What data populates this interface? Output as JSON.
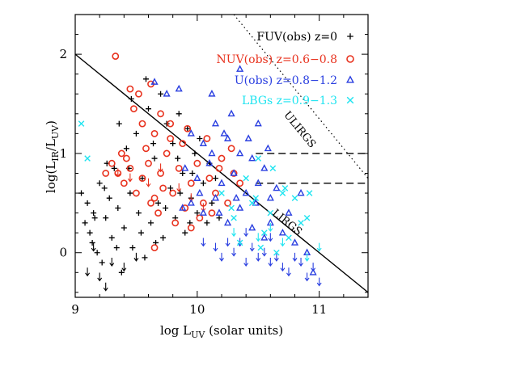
{
  "chart_data": {
    "type": "scatter",
    "xlabel": "log L",
    "xlabel_sub": "UV",
    "xlabel_suffix": " (solar units)",
    "ylabel": "log(L",
    "ylabel_sub1": "IR",
    "ylabel_mid": "/L",
    "ylabel_sub2": "UV",
    "ylabel_suffix": ")",
    "xlim": [
      9.0,
      11.4
    ],
    "ylim": [
      -0.45,
      2.4
    ],
    "xticks": [
      {
        "value": 9,
        "label": "9"
      },
      {
        "value": 10,
        "label": "10"
      },
      {
        "value": 11,
        "label": "11"
      }
    ],
    "yticks": [
      {
        "value": 0,
        "label": "0"
      },
      {
        "value": 1,
        "label": "1"
      },
      {
        "value": 2,
        "label": "2"
      }
    ],
    "grid": false,
    "legend_position": "top-right",
    "reference_lines": [
      {
        "label": "LIRGS",
        "style": "solid",
        "x": [
          9.0,
          11.4
        ],
        "y": [
          2.0,
          -0.4
        ],
        "label_x": 10.72,
        "label_y": 0.28
      },
      {
        "label": "ULIRGS",
        "style": "dotted",
        "x": [
          10.3,
          11.4
        ],
        "y": [
          2.4,
          0.75
        ],
        "label_x": 10.82,
        "label_y": 1.22
      },
      {
        "label": "",
        "style": "dashed",
        "x": [
          10.48,
          11.4
        ],
        "y": [
          1.0,
          1.0
        ]
      },
      {
        "label": "",
        "style": "dashed",
        "x": [
          10.48,
          11.4
        ],
        "y": [
          0.7,
          0.7
        ]
      }
    ],
    "series": [
      {
        "name": "FUV(obs)  z=0",
        "marker": "plus",
        "color": "#000000",
        "points": [
          [
            9.05,
            0.6
          ],
          [
            9.08,
            0.3
          ],
          [
            9.1,
            0.5
          ],
          [
            9.12,
            0.2
          ],
          [
            9.15,
            0.4
          ],
          [
            9.18,
            0.0
          ],
          [
            9.2,
            0.7
          ],
          [
            9.22,
            -0.1
          ],
          [
            9.25,
            0.35
          ],
          [
            9.28,
            0.55
          ],
          [
            9.3,
            0.15
          ],
          [
            9.32,
            0.85
          ],
          [
            9.35,
            0.45
          ],
          [
            9.38,
            -0.2
          ],
          [
            9.4,
            0.25
          ],
          [
            9.42,
            1.05
          ],
          [
            9.45,
            0.6
          ],
          [
            9.47,
            0.05
          ],
          [
            9.5,
            1.2
          ],
          [
            9.52,
            0.4
          ],
          [
            9.55,
            0.75
          ],
          [
            9.57,
            -0.05
          ],
          [
            9.6,
            1.45
          ],
          [
            9.62,
            0.3
          ],
          [
            9.65,
            0.95
          ],
          [
            9.68,
            0.5
          ],
          [
            9.7,
            1.6
          ],
          [
            9.72,
            0.15
          ],
          [
            9.75,
            1.3
          ],
          [
            9.78,
            0.65
          ],
          [
            9.8,
            1.1
          ],
          [
            9.82,
            0.35
          ],
          [
            9.85,
            1.4
          ],
          [
            9.88,
            0.8
          ],
          [
            9.9,
            0.2
          ],
          [
            9.92,
            1.25
          ],
          [
            9.95,
            0.55
          ],
          [
            9.98,
            1.0
          ],
          [
            10.0,
            0.4
          ],
          [
            10.02,
            1.15
          ],
          [
            10.05,
            0.7
          ],
          [
            10.08,
            0.3
          ],
          [
            10.1,
            0.9
          ],
          [
            10.12,
            0.5
          ],
          [
            10.15,
            0.75
          ],
          [
            10.18,
            0.35
          ],
          [
            9.14,
            0.1
          ],
          [
            9.24,
            0.65
          ],
          [
            9.34,
            0.05
          ],
          [
            9.44,
            0.85
          ],
          [
            9.54,
            0.2
          ],
          [
            9.64,
            1.1
          ],
          [
            9.74,
            0.45
          ],
          [
            9.84,
            0.95
          ],
          [
            9.94,
            0.3
          ],
          [
            9.46,
            1.55
          ],
          [
            9.58,
            1.75
          ],
          [
            9.36,
            1.3
          ],
          [
            9.26,
            0.9
          ],
          [
            9.66,
            0.1
          ],
          [
            9.86,
            0.6
          ],
          [
            9.96,
            0.8
          ],
          [
            9.16,
            0.35
          ]
        ]
      },
      {
        "name": "NUV(obs)  z=0.6−0.8",
        "marker": "circle",
        "color": "#e8321e",
        "points": [
          [
            9.33,
            1.98
          ],
          [
            9.45,
            1.65
          ],
          [
            9.52,
            1.6
          ],
          [
            9.62,
            1.7
          ],
          [
            9.55,
            1.3
          ],
          [
            9.65,
            1.2
          ],
          [
            9.7,
            1.4
          ],
          [
            9.3,
            0.9
          ],
          [
            9.35,
            0.8
          ],
          [
            9.4,
            0.7
          ],
          [
            9.45,
            0.85
          ],
          [
            9.5,
            0.6
          ],
          [
            9.55,
            0.75
          ],
          [
            9.6,
            0.9
          ],
          [
            9.65,
            0.55
          ],
          [
            9.7,
            0.8
          ],
          [
            9.75,
            1.0
          ],
          [
            9.8,
            0.6
          ],
          [
            9.85,
            0.85
          ],
          [
            9.9,
            0.45
          ],
          [
            9.95,
            0.7
          ],
          [
            10.0,
            0.9
          ],
          [
            10.05,
            0.5
          ],
          [
            10.1,
            0.75
          ],
          [
            10.15,
            0.6
          ],
          [
            10.2,
            0.95
          ],
          [
            10.25,
            0.5
          ],
          [
            10.3,
            0.8
          ],
          [
            9.42,
            0.95
          ],
          [
            9.58,
            1.05
          ],
          [
            9.72,
            0.65
          ],
          [
            9.88,
            1.1
          ],
          [
            10.02,
            0.35
          ],
          [
            10.18,
            0.85
          ],
          [
            9.92,
            1.25
          ],
          [
            9.78,
            1.3
          ],
          [
            9.48,
            1.45
          ],
          [
            10.08,
            1.15
          ],
          [
            10.28,
            1.05
          ],
          [
            9.68,
            0.4
          ],
          [
            9.82,
            0.3
          ],
          [
            9.95,
            0.25
          ],
          [
            9.65,
            0.05
          ],
          [
            9.78,
            1.15
          ],
          [
            10.35,
            0.7
          ],
          [
            10.12,
            0.4
          ],
          [
            9.25,
            0.8
          ],
          [
            9.38,
            1.0
          ],
          [
            9.62,
            0.5
          ]
        ]
      },
      {
        "name": "U(obs)  z=0.8−1.2",
        "marker": "triangle",
        "color": "#2a3fe0",
        "points": [
          [
            9.65,
            1.72
          ],
          [
            9.75,
            1.6
          ],
          [
            9.85,
            1.65
          ],
          [
            10.12,
            1.6
          ],
          [
            10.35,
            1.85
          ],
          [
            10.28,
            1.4
          ],
          [
            10.5,
            1.3
          ],
          [
            9.95,
            1.2
          ],
          [
            10.05,
            1.1
          ],
          [
            10.15,
            1.3
          ],
          [
            10.25,
            1.15
          ],
          [
            10.35,
            1.0
          ],
          [
            10.45,
            0.95
          ],
          [
            10.55,
            0.85
          ],
          [
            9.9,
            0.85
          ],
          [
            10.0,
            0.75
          ],
          [
            10.1,
            0.9
          ],
          [
            10.2,
            0.7
          ],
          [
            10.3,
            0.8
          ],
          [
            10.4,
            0.6
          ],
          [
            10.5,
            0.7
          ],
          [
            9.95,
            0.5
          ],
          [
            10.05,
            0.4
          ],
          [
            10.15,
            0.55
          ],
          [
            10.25,
            0.3
          ],
          [
            10.35,
            0.45
          ],
          [
            10.45,
            0.25
          ],
          [
            10.6,
            0.3
          ],
          [
            10.7,
            0.2
          ],
          [
            10.55,
            0.15
          ],
          [
            10.8,
            0.1
          ],
          [
            10.9,
            0.0
          ],
          [
            10.75,
            0.4
          ],
          [
            10.85,
            0.6
          ],
          [
            10.6,
            0.55
          ],
          [
            10.12,
            1.0
          ],
          [
            10.22,
            1.2
          ],
          [
            10.42,
            1.15
          ],
          [
            10.32,
            0.55
          ],
          [
            10.02,
            0.6
          ],
          [
            9.88,
            0.45
          ],
          [
            10.18,
            0.4
          ],
          [
            10.48,
            0.5
          ],
          [
            10.65,
            0.65
          ],
          [
            10.95,
            -0.2
          ],
          [
            10.58,
            1.05
          ]
        ]
      },
      {
        "name": "LBGs  z=0.9−1.3",
        "marker": "cross",
        "color": "#1fe4f0",
        "points": [
          [
            9.05,
            1.3
          ],
          [
            9.1,
            0.95
          ],
          [
            10.2,
            0.6
          ],
          [
            10.3,
            0.35
          ],
          [
            10.45,
            0.5
          ],
          [
            10.6,
            0.4
          ],
          [
            10.7,
            0.6
          ],
          [
            10.8,
            0.55
          ],
          [
            10.9,
            0.35
          ],
          [
            10.55,
            0.2
          ],
          [
            10.65,
            0.0
          ],
          [
            10.75,
            0.15
          ],
          [
            10.85,
            0.3
          ],
          [
            10.4,
            0.75
          ],
          [
            10.5,
            0.95
          ],
          [
            10.62,
            0.85
          ],
          [
            10.72,
            0.65
          ],
          [
            10.35,
            0.1
          ],
          [
            10.52,
            0.05
          ],
          [
            10.92,
            0.6
          ],
          [
            10.48,
            0.55
          ],
          [
            10.28,
            0.45
          ]
        ]
      },
      {
        "name": "",
        "marker": "arrow-down",
        "color": "#000000",
        "points": [
          [
            9.1,
            -0.2
          ],
          [
            9.2,
            -0.25
          ],
          [
            9.3,
            -0.1
          ],
          [
            9.15,
            0.05
          ],
          [
            9.25,
            -0.35
          ],
          [
            9.4,
            -0.15
          ],
          [
            9.5,
            -0.05
          ]
        ]
      },
      {
        "name": "",
        "marker": "arrow-down",
        "color": "#e8321e",
        "points": [
          [
            9.35,
            0.8
          ],
          [
            9.45,
            0.75
          ],
          [
            9.6,
            0.7
          ],
          [
            9.7,
            0.85
          ],
          [
            9.85,
            0.65
          ],
          [
            9.95,
            0.55
          ],
          [
            10.05,
            0.45
          ]
        ]
      },
      {
        "name": "",
        "marker": "arrow-down",
        "color": "#2a3fe0",
        "points": [
          [
            10.2,
            -0.05
          ],
          [
            10.3,
            0.0
          ],
          [
            10.4,
            -0.1
          ],
          [
            10.5,
            -0.05
          ],
          [
            10.6,
            -0.1
          ],
          [
            10.7,
            -0.15
          ],
          [
            10.8,
            -0.05
          ],
          [
            10.9,
            -0.25
          ],
          [
            11.0,
            -0.3
          ],
          [
            10.35,
            0.1
          ],
          [
            10.45,
            0.05
          ],
          [
            10.55,
            0.0
          ],
          [
            10.65,
            -0.05
          ],
          [
            10.15,
            0.05
          ],
          [
            10.25,
            0.1
          ],
          [
            10.75,
            -0.2
          ],
          [
            10.85,
            -0.1
          ],
          [
            10.95,
            -0.15
          ],
          [
            10.05,
            0.1
          ],
          [
            10.4,
            0.2
          ],
          [
            10.6,
            0.15
          ]
        ]
      },
      {
        "name": "",
        "marker": "arrow-down",
        "color": "#1fe4f0",
        "points": [
          [
            10.3,
            0.2
          ],
          [
            10.5,
            0.15
          ],
          [
            10.7,
            0.1
          ],
          [
            10.9,
            -0.05
          ],
          [
            11.0,
            0.05
          ],
          [
            10.6,
            0.25
          ]
        ]
      }
    ]
  }
}
